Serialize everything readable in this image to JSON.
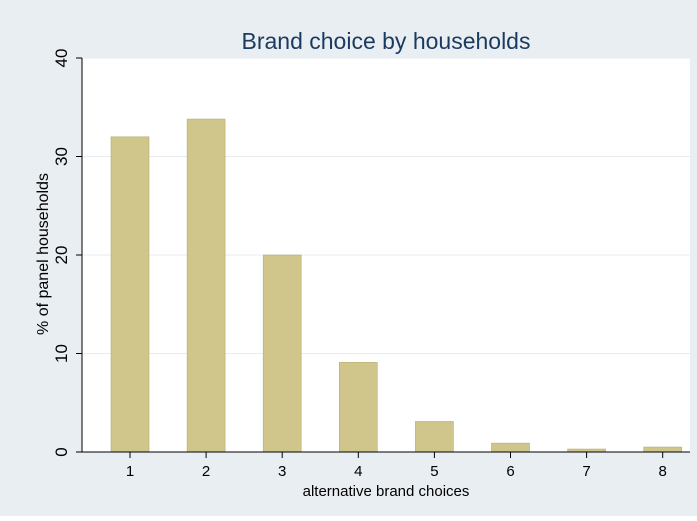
{
  "chart_data": {
    "type": "bar",
    "title": "Brand choice by households",
    "xlabel": "alternative brand choices",
    "ylabel": "% of panel households",
    "categories": [
      "1",
      "2",
      "3",
      "4",
      "5",
      "6",
      "7",
      "8"
    ],
    "values": [
      32,
      33.8,
      20,
      9.1,
      3.1,
      0.9,
      0.3,
      0.5
    ],
    "ylim": [
      0,
      40
    ],
    "yticks": [
      "0",
      "10",
      "20",
      "30",
      "40"
    ],
    "grid": true,
    "colors": {
      "bar": "#d0c58b",
      "bar_edge": "#b8ad72",
      "plot_bg": "#ffffff",
      "outer_bg": "#e9eef2",
      "title": "#1a3a5f",
      "grid": "#e6ecf0",
      "axis": "#000000"
    }
  }
}
